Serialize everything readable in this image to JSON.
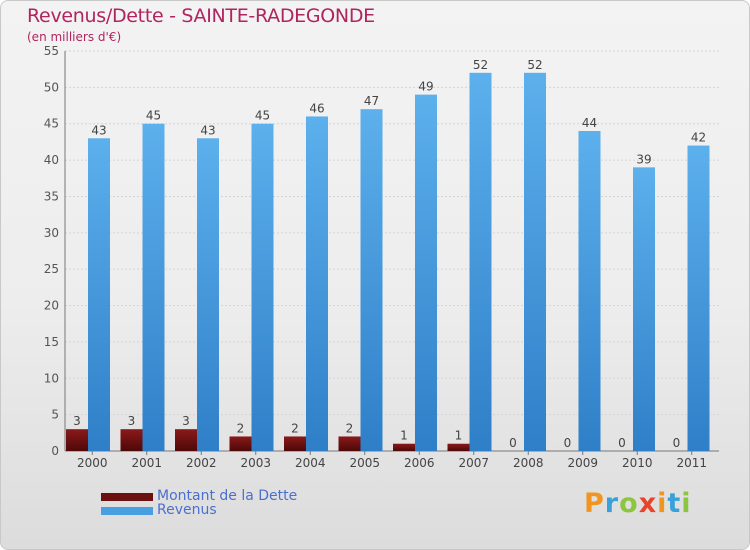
{
  "header": {
    "title": "Revenus/Dette - SAINTE-RADEGONDE",
    "subtitle": "(en milliers d'€)"
  },
  "legend": [
    {
      "label": "Montant de la Dette",
      "color": "#6b0f0f"
    },
    {
      "label": "Revenus",
      "color": "#4a9fe0"
    }
  ],
  "logo": {
    "letters": [
      "P",
      "r",
      "o",
      "x",
      "i",
      "t",
      "i"
    ],
    "colors": [
      "#f29420",
      "#3aa0d8",
      "#8cc63f",
      "#e8442c",
      "#f29420",
      "#3aa0d8",
      "#8cc63f"
    ]
  },
  "chart_data": {
    "type": "bar",
    "categories": [
      "2000",
      "2001",
      "2002",
      "2003",
      "2004",
      "2005",
      "2006",
      "2007",
      "2008",
      "2009",
      "2010",
      "2011"
    ],
    "series": [
      {
        "name": "Montant de la Dette",
        "color": "#6b0f0f",
        "values": [
          3,
          3,
          3,
          2,
          2,
          2,
          1,
          1,
          0,
          0,
          0,
          0
        ]
      },
      {
        "name": "Revenus",
        "color": "#4a9fe0",
        "values": [
          43,
          45,
          43,
          45,
          46,
          47,
          49,
          52,
          52,
          44,
          39,
          42
        ]
      }
    ],
    "yticks": [
      "0",
      "5",
      "10",
      "15",
      "20",
      "25",
      "30",
      "35",
      "40",
      "45",
      "50",
      "55"
    ],
    "ylim": [
      0,
      55
    ],
    "grid": true,
    "legend_position": "bottom-left"
  }
}
